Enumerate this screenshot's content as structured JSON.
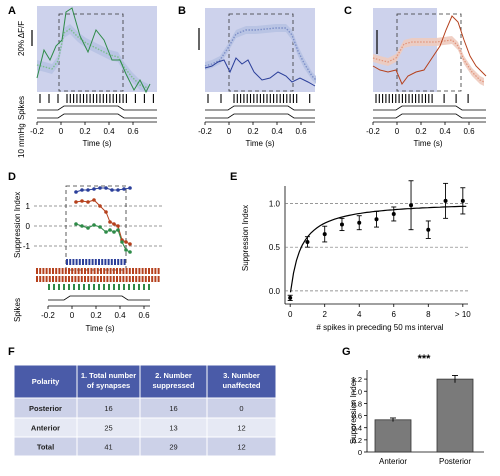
{
  "panel_letters": [
    "A",
    "B",
    "C",
    "D",
    "E",
    "F",
    "G"
  ],
  "colors": {
    "shade": "#cdd2ec",
    "ci_band": "#b7c2e3",
    "green": "#2e8b48",
    "green_light": "#7cc08c",
    "blue": "#2b3f9a",
    "blue_light": "#7d8fc8",
    "red": "#b5401c",
    "red_light": "#e2937a",
    "table_header": "#4a5ba8",
    "table_row_a": "#ccd1e8",
    "table_row_b": "#e6e9f4",
    "bar": "#7a7a7a"
  },
  "trace_labels": {
    "df_scale": "20% ΔF/F",
    "spikes": "Spikes",
    "pressure": "10 mmHg",
    "time_axis": "Time (s)"
  },
  "time_ticks": [
    "-0.2",
    "0",
    "0.2",
    "0.4",
    "0.6"
  ],
  "panel_D": {
    "ylabel": "Suppression Index",
    "yticks": [
      "1",
      "0",
      "-1"
    ],
    "spikes_label": "Spikes",
    "xlabel": "Time (s)",
    "xticks": [
      "-0.2",
      "0",
      "0.2",
      "0.4",
      "0.6"
    ]
  },
  "panel_F": {
    "headers": [
      "Polarity",
      "1. Total number of synapses",
      "2. Number suppressed",
      "3. Number unaffected"
    ],
    "rows": [
      [
        "Posterior",
        "16",
        "16",
        "0"
      ],
      [
        "Anterior",
        "25",
        "13",
        "12"
      ],
      [
        "Total",
        "41",
        "29",
        "12"
      ]
    ]
  },
  "chart_data": [
    {
      "panel": "E",
      "type": "scatter",
      "title": "",
      "xlabel": "# spikes in preceding 50 ms interval",
      "ylabel": "Suppression Index",
      "x_tick_labels": [
        "0",
        "2",
        "4",
        "6",
        "8",
        "> 10"
      ],
      "y_tick_labels": [
        "0.0",
        "0.5",
        "1.0"
      ],
      "xlim": [
        -0.3,
        10.3
      ],
      "ylim": [
        -0.15,
        1.2
      ],
      "dashed_reference_lines": [
        0,
        0.5,
        1.0
      ],
      "x": [
        0,
        1,
        2,
        3,
        4,
        5,
        6,
        7,
        8,
        9,
        10
      ],
      "y": [
        -0.08,
        0.56,
        0.65,
        0.76,
        0.78,
        0.82,
        0.88,
        0.98,
        0.7,
        1.03,
        1.03
      ],
      "error": [
        0.03,
        0.06,
        0.09,
        0.07,
        0.08,
        0.09,
        0.08,
        0.28,
        0.1,
        0.2,
        0.15
      ],
      "fit_curve": "saturating"
    },
    {
      "panel": "G",
      "type": "bar",
      "title": "",
      "categories": [
        "Anterior",
        "Posterior"
      ],
      "values": [
        0.53,
        1.2
      ],
      "error": [
        0.03,
        0.06
      ],
      "ylabel": "Suppression Index",
      "y_tick_labels": [
        "0",
        "0.2",
        "0.4",
        "0.6",
        "0.8",
        "1.0",
        "1.2"
      ],
      "ylim": [
        0,
        1.35
      ],
      "significance": "***"
    }
  ]
}
